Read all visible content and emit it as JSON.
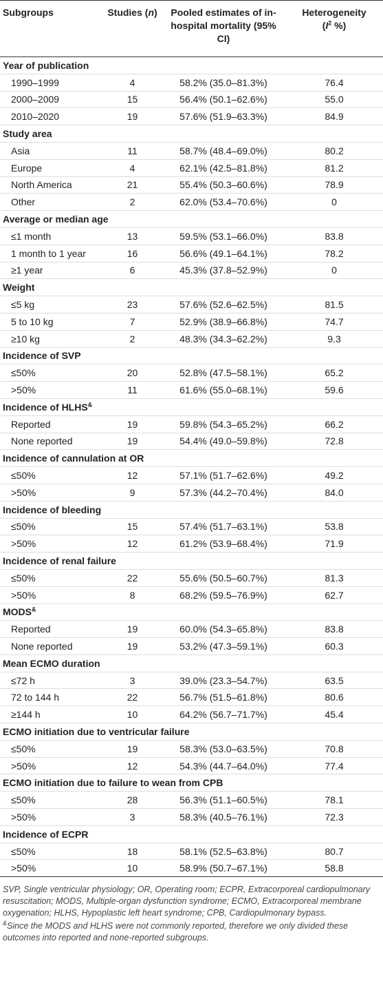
{
  "header": {
    "subgroups": "Subgroups",
    "studies": [
      "Studies (",
      "n",
      ")"
    ],
    "pooled": "Pooled estimates of in-hospital mortality (95% CI)",
    "heterogeneity": [
      "Heterogeneity",
      "(",
      "I",
      "2",
      " %)"
    ]
  },
  "groups": [
    {
      "label": "Year of publication",
      "rows": [
        [
          "1990–1999",
          "4",
          "58.2% (35.0–81.3%)",
          "76.4"
        ],
        [
          "2000–2009",
          "15",
          "56.4% (50.1–62.6%)",
          "55.0"
        ],
        [
          "2010–2020",
          "19",
          "57.6% (51.9–63.3%)",
          "84.9"
        ]
      ]
    },
    {
      "label": "Study area",
      "rows": [
        [
          "Asia",
          "11",
          "58.7% (48.4–69.0%)",
          "80.2"
        ],
        [
          "Europe",
          "4",
          "62.1% (42.5–81.8%)",
          "81.2"
        ],
        [
          "North America",
          "21",
          "55.4% (50.3–60.6%)",
          "78.9"
        ],
        [
          "Other",
          "2",
          "62.0% (53.4–70.6%)",
          "0"
        ]
      ]
    },
    {
      "label": "Average or median age",
      "rows": [
        [
          "≤1 month",
          "13",
          "59.5% (53.1–66.0%)",
          "83.8"
        ],
        [
          "1 month to 1 year",
          "16",
          "56.6% (49.1–64.1%)",
          "78.2"
        ],
        [
          "≥1 year",
          "6",
          "45.3% (37.8–52.9%)",
          "0"
        ]
      ]
    },
    {
      "label": "Weight",
      "rows": [
        [
          "≤5 kg",
          "23",
          "57.6% (52.6–62.5%)",
          "81.5"
        ],
        [
          "5 to 10 kg",
          "7",
          "52.9% (38.9–66.8%)",
          "74.7"
        ],
        [
          "≥10 kg",
          "2",
          "48.3% (34.3–62.2%)",
          "9.3"
        ]
      ]
    },
    {
      "label": "Incidence of SVP",
      "rows": [
        [
          "≤50%",
          "20",
          "52.8% (47.5–58.1%)",
          "65.2"
        ],
        [
          ">50%",
          "11",
          "61.6% (55.0–68.1%)",
          "59.6"
        ]
      ]
    },
    {
      "label": "Incidence of HLHS",
      "note_mark": "&",
      "rows": [
        [
          "Reported",
          "19",
          "59.8% (54.3–65.2%)",
          "66.2"
        ],
        [
          "None reported",
          "19",
          "54.4% (49.0–59.8%)",
          "72.8"
        ]
      ]
    },
    {
      "label": "Incidence of cannulation at OR",
      "rows": [
        [
          "≤50%",
          "12",
          "57.1% (51.7–62.6%)",
          "49.2"
        ],
        [
          ">50%",
          "9",
          "57.3% (44.2–70.4%)",
          "84.0"
        ]
      ]
    },
    {
      "label": "Incidence of bleeding",
      "rows": [
        [
          "≤50%",
          "15",
          "57.4% (51.7–63.1%)",
          "53.8"
        ],
        [
          ">50%",
          "12",
          "61.2% (53.9–68.4%)",
          "71.9"
        ]
      ]
    },
    {
      "label": "Incidence of renal failure",
      "rows": [
        [
          "≤50%",
          "22",
          "55.6% (50.5–60.7%)",
          "81.3"
        ],
        [
          ">50%",
          "8",
          "68.2% (59.5–76.9%)",
          "62.7"
        ]
      ]
    },
    {
      "label": "MODS",
      "note_mark": "&",
      "rows": [
        [
          "Reported",
          "19",
          "60.0% (54.3–65.8%)",
          "83.8"
        ],
        [
          "None reported",
          "19",
          "53.2% (47.3–59.1%)",
          "60.3"
        ]
      ]
    },
    {
      "label": "Mean ECMO duration",
      "rows": [
        [
          "≤72 h",
          "3",
          "39.0% (23.3–54.7%)",
          "63.5"
        ],
        [
          "72 to 144 h",
          "22",
          "56.7% (51.5–61.8%)",
          "80.6"
        ],
        [
          "≥144 h",
          "10",
          "64.2% (56.7–71.7%)",
          "45.4"
        ]
      ]
    },
    {
      "label": "ECMO initiation due to ventricular failure",
      "rows": [
        [
          "≤50%",
          "19",
          "58.3% (53.0–63.5%)",
          "70.8"
        ],
        [
          ">50%",
          "12",
          "54.3% (44.7–64.0%)",
          "77.4"
        ]
      ]
    },
    {
      "label": "ECMO initiation due to failure to wean from CPB",
      "rows": [
        [
          "≤50%",
          "28",
          "56.3% (51.1–60.5%)",
          "78.1"
        ],
        [
          ">50%",
          "3",
          "58.3% (40.5–76.1%)",
          "72.3"
        ]
      ]
    },
    {
      "label": "Incidence of ECPR",
      "rows": [
        [
          "≤50%",
          "18",
          "58.1% (52.5–63.8%)",
          "80.7"
        ],
        [
          ">50%",
          "10",
          "58.9% (50.7–67.1%)",
          "58.8"
        ]
      ]
    }
  ],
  "footnotes": {
    "abbreviations": "SVP, Single ventricular physiology; OR, Operating room; ECPR, Extracorporeal cardiopulmonary resuscitation; MODS, Multiple-organ dysfunction syndrome; ECMO, Extracorporeal membrane oxygenation; HLHS, Hypoplastic left heart syndrome; CPB, Cardiopulmonary bypass.",
    "note_mark": "&",
    "note": "Since the MODS and HLHS were not commonly reported, therefore we only divided these outcomes into reported and none-reported subgroups."
  }
}
